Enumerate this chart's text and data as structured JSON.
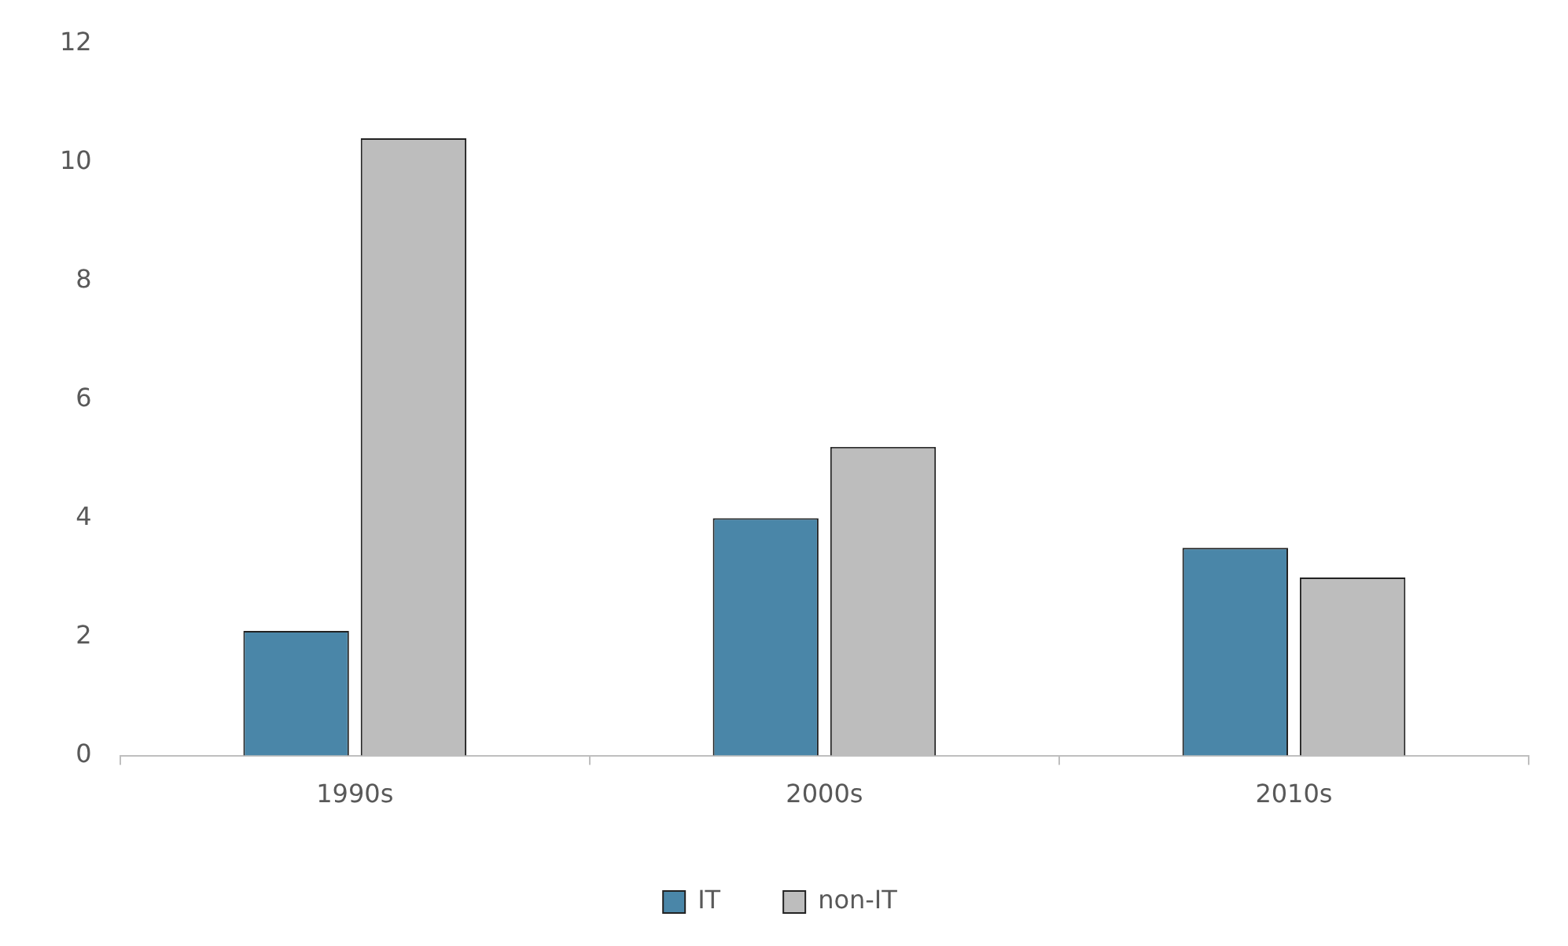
{
  "chart_data": {
    "type": "bar",
    "categories": [
      "1990s",
      "2000s",
      "2010s"
    ],
    "series": [
      {
        "name": "IT",
        "color": "#4a86a8",
        "values": [
          2.1,
          4.0,
          3.5
        ]
      },
      {
        "name": "non-IT",
        "color": "#bdbdbd",
        "values": [
          10.4,
          5.2,
          3.0
        ]
      }
    ],
    "ylim": [
      0,
      12
    ],
    "yticks": [
      0,
      2,
      4,
      6,
      8,
      10,
      12
    ],
    "grid": false,
    "legend": "bottom"
  }
}
